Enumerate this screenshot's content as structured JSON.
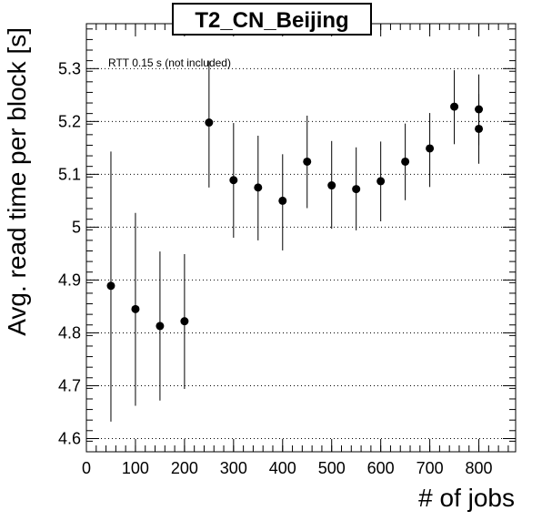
{
  "chart_data": {
    "type": "scatter",
    "title": "T2_CN_Beijing",
    "xlabel": "# of jobs",
    "ylabel": "Avg. read time per block [s]",
    "annotation": "RTT 0.15 s (not included)",
    "xlim": [
      0,
      875
    ],
    "ylim": [
      4.575,
      5.385
    ],
    "x_ticks": [
      0,
      100,
      200,
      300,
      400,
      500,
      600,
      700,
      800
    ],
    "y_ticks": [
      4.6,
      4.7,
      4.8,
      4.9,
      5,
      5.1,
      5.2,
      5.3
    ],
    "grid": "horizontal dotted",
    "points": [
      {
        "x": 50,
        "y": 4.889,
        "err_low": 4.632,
        "err_high": 5.143
      },
      {
        "x": 100,
        "y": 4.845,
        "err_low": 4.662,
        "err_high": 5.027
      },
      {
        "x": 150,
        "y": 4.813,
        "err_low": 4.672,
        "err_high": 4.954
      },
      {
        "x": 200,
        "y": 4.822,
        "err_low": 4.694,
        "err_high": 4.949
      },
      {
        "x": 250,
        "y": 5.198,
        "err_low": 5.075,
        "err_high": 5.315
      },
      {
        "x": 300,
        "y": 5.089,
        "err_low": 4.98,
        "err_high": 5.197
      },
      {
        "x": 350,
        "y": 5.075,
        "err_low": 4.975,
        "err_high": 5.173
      },
      {
        "x": 400,
        "y": 5.05,
        "err_low": 4.956,
        "err_high": 5.138
      },
      {
        "x": 450,
        "y": 5.124,
        "err_low": 5.036,
        "err_high": 5.211
      },
      {
        "x": 500,
        "y": 5.079,
        "err_low": 4.997,
        "err_high": 5.163
      },
      {
        "x": 550,
        "y": 5.072,
        "err_low": 4.994,
        "err_high": 5.151
      },
      {
        "x": 600,
        "y": 5.087,
        "err_low": 5.011,
        "err_high": 5.162
      },
      {
        "x": 650,
        "y": 5.124,
        "err_low": 5.051,
        "err_high": 5.196
      },
      {
        "x": 700,
        "y": 5.149,
        "err_low": 5.076,
        "err_high": 5.216
      },
      {
        "x": 750,
        "y": 5.228,
        "err_low": 5.157,
        "err_high": 5.297
      },
      {
        "x": 800,
        "y": 5.223,
        "err_low": 5.155,
        "err_high": 5.289
      },
      {
        "x": 800,
        "y": 5.186,
        "err_low": 5.12,
        "err_high": 5.252
      }
    ]
  }
}
